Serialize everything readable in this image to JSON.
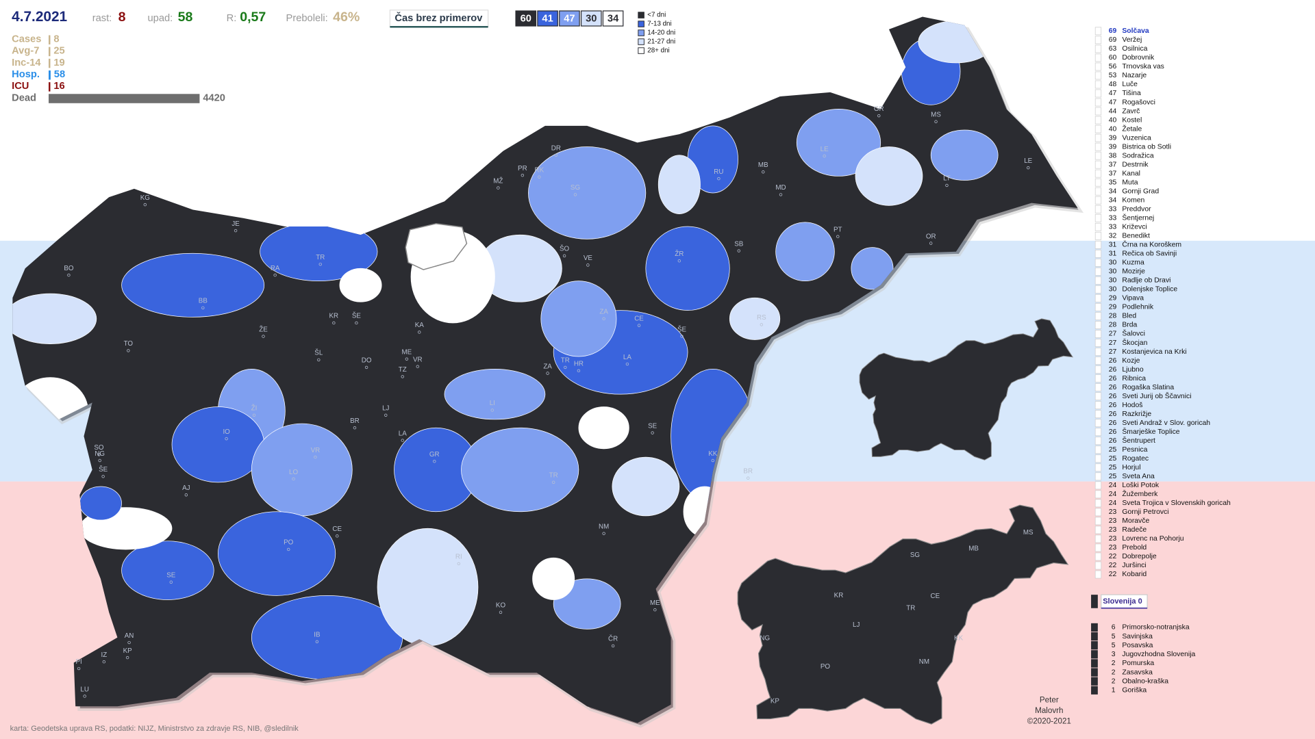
{
  "header": {
    "date": "4.7.2021",
    "stats": [
      {
        "label": "rast:",
        "value": 8,
        "color": "#8b1010"
      },
      {
        "label": "upad:",
        "value": 58,
        "color": "#1a7a1a"
      },
      {
        "label": "R:",
        "value": "0,57",
        "color": "#1a7a1a"
      },
      {
        "label": "Preboleli:",
        "value": "46%",
        "color": "#c8b48c"
      }
    ],
    "button": "Čas brez primerov"
  },
  "counts": [
    {
      "value": 60,
      "color": "#2b2c31"
    },
    {
      "value": 41,
      "color": "#3a64dd"
    },
    {
      "value": 47,
      "color": "#7f9ff0"
    },
    {
      "value": 30,
      "color": "#d4e2fb"
    },
    {
      "value": 34,
      "color": "#ffffff"
    }
  ],
  "legend": [
    {
      "label": "<7 dni",
      "color": "#2b2c31"
    },
    {
      "label": "7-13 dni",
      "color": "#3a64dd"
    },
    {
      "label": "14-20 dni",
      "color": "#7f9ff0"
    },
    {
      "label": "21-27 dni",
      "color": "#d4e2fb"
    },
    {
      "label": "28+ dni",
      "color": "#ffffff"
    }
  ],
  "summary": [
    {
      "label": "Cases",
      "value": 8,
      "color": "#c8b48c"
    },
    {
      "label": "Avg-7",
      "value": 25,
      "color": "#c8b48c"
    },
    {
      "label": "Inc-14",
      "value": 19,
      "color": "#c8b48c"
    },
    {
      "label": "Hosp.",
      "value": 58,
      "color": "#2a8ee8"
    },
    {
      "label": "ICU",
      "value": 16,
      "color": "#8b1010"
    },
    {
      "label": "Dead",
      "value": 4420,
      "color": "#6e6e6e"
    }
  ],
  "municipalities": [
    {
      "days": 69,
      "name": "Solčava"
    },
    {
      "days": 69,
      "name": "Veržej"
    },
    {
      "days": 63,
      "name": "Osilnica"
    },
    {
      "days": 60,
      "name": "Dobrovnik"
    },
    {
      "days": 56,
      "name": "Trnovska vas"
    },
    {
      "days": 53,
      "name": "Nazarje"
    },
    {
      "days": 48,
      "name": "Luče"
    },
    {
      "days": 47,
      "name": "Tišina"
    },
    {
      "days": 47,
      "name": "Rogašovci"
    },
    {
      "days": 44,
      "name": "Zavrč"
    },
    {
      "days": 40,
      "name": "Kostel"
    },
    {
      "days": 40,
      "name": "Žetale"
    },
    {
      "days": 39,
      "name": "Vuzenica"
    },
    {
      "days": 39,
      "name": "Bistrica ob Sotli"
    },
    {
      "days": 38,
      "name": "Sodražica"
    },
    {
      "days": 37,
      "name": "Destrnik"
    },
    {
      "days": 37,
      "name": "Kanal"
    },
    {
      "days": 35,
      "name": "Muta"
    },
    {
      "days": 34,
      "name": "Gornji Grad"
    },
    {
      "days": 34,
      "name": "Komen"
    },
    {
      "days": 33,
      "name": "Preddvor"
    },
    {
      "days": 33,
      "name": "Šentjernej"
    },
    {
      "days": 33,
      "name": "Križevci"
    },
    {
      "days": 32,
      "name": "Benedikt"
    },
    {
      "days": 31,
      "name": "Črna na Koroškem"
    },
    {
      "days": 31,
      "name": "Rečica ob Savinji"
    },
    {
      "days": 30,
      "name": "Kuzma"
    },
    {
      "days": 30,
      "name": "Mozirje"
    },
    {
      "days": 30,
      "name": "Radlje ob Dravi"
    },
    {
      "days": 30,
      "name": "Dolenjske Toplice"
    },
    {
      "days": 29,
      "name": "Vipava"
    },
    {
      "days": 29,
      "name": "Podlehnik"
    },
    {
      "days": 28,
      "name": "Bled"
    },
    {
      "days": 28,
      "name": "Brda"
    },
    {
      "days": 27,
      "name": "Šalovci"
    },
    {
      "days": 27,
      "name": "Škocjan"
    },
    {
      "days": 27,
      "name": "Kostanjevica na Krki"
    },
    {
      "days": 26,
      "name": "Kozje"
    },
    {
      "days": 26,
      "name": "Ljubno"
    },
    {
      "days": 26,
      "name": "Ribnica"
    },
    {
      "days": 26,
      "name": "Rogaška Slatina"
    },
    {
      "days": 26,
      "name": "Sveti Jurij ob Ščavnici"
    },
    {
      "days": 26,
      "name": "Hodoš"
    },
    {
      "days": 26,
      "name": "Razkrižje"
    },
    {
      "days": 26,
      "name": "Sveti Andraž v Slov. goricah"
    },
    {
      "days": 26,
      "name": "Šmarješke Toplice"
    },
    {
      "days": 26,
      "name": "Šentrupert"
    },
    {
      "days": 25,
      "name": "Pesnica"
    },
    {
      "days": 25,
      "name": "Rogatec"
    },
    {
      "days": 25,
      "name": "Horjul"
    },
    {
      "days": 25,
      "name": "Sveta Ana"
    },
    {
      "days": 24,
      "name": "Loški Potok"
    },
    {
      "days": 24,
      "name": "Žužemberk"
    },
    {
      "days": 24,
      "name": "Sveta Trojica v Slovenskih goricah"
    },
    {
      "days": 23,
      "name": "Gornji Petrovci"
    },
    {
      "days": 23,
      "name": "Moravče"
    },
    {
      "days": 23,
      "name": "Radeče"
    },
    {
      "days": 23,
      "name": "Lovrenc na Pohorju"
    },
    {
      "days": 23,
      "name": "Prebold"
    },
    {
      "days": 22,
      "name": "Dobrepolje"
    },
    {
      "days": 22,
      "name": "Juršinci"
    },
    {
      "days": 22,
      "name": "Kobarid"
    }
  ],
  "national": "Slovenija 0",
  "regions": [
    {
      "days": 6,
      "name": "Primorsko-notranjska"
    },
    {
      "days": 5,
      "name": "Savinjska"
    },
    {
      "days": 5,
      "name": "Posavska"
    },
    {
      "days": 3,
      "name": "Jugovzhodna Slovenija"
    },
    {
      "days": 2,
      "name": "Pomurska"
    },
    {
      "days": 2,
      "name": "Zasavska"
    },
    {
      "days": 2,
      "name": "Obalno-kraška"
    },
    {
      "days": 1,
      "name": "Goriška"
    }
  ],
  "map_labels": [
    "BO",
    "KG",
    "JE",
    "BB",
    "TR",
    "RA",
    "KR",
    "ŠE",
    "KA",
    "ŽE",
    "TO",
    "ŠL",
    "ME",
    "VR",
    "DO",
    "TZ",
    "ŽI",
    "IO",
    "LJ",
    "BR",
    "LA",
    "VR",
    "LO",
    "AJ",
    "SO",
    "NG",
    "ŠE",
    "PO",
    "CE",
    "IB",
    "SE",
    "AN",
    "IZ",
    "KP",
    "PI",
    "LU",
    "KO",
    "ČR",
    "ME",
    "NM",
    "RI",
    "TR",
    "KK",
    "BR",
    "SE",
    "LI",
    "GR",
    "ZA",
    "TR",
    "HR",
    "LA",
    "ŠE",
    "CE",
    "ZA",
    "VE",
    "ŠO",
    "ŽR",
    "SB",
    "RS",
    "SG",
    "DR",
    "PR",
    "RK",
    "MŽ",
    "RU",
    "MB",
    "MD",
    "PT",
    "OR",
    "LE",
    "GR",
    "MS",
    "LT",
    "LE"
  ],
  "inset_labels": [
    "SG",
    "MB",
    "MS",
    "KR",
    "CE",
    "TR",
    "LJ",
    "NG",
    "KK",
    "PO",
    "NM",
    "KP"
  ],
  "credit": "karta: Geodetska uprava RS,  podatki: NIJZ, Ministrstvo za zdravje RS, NIB, @sledilnik",
  "author": [
    "Peter",
    "Malovrh",
    "©2020-2021"
  ]
}
